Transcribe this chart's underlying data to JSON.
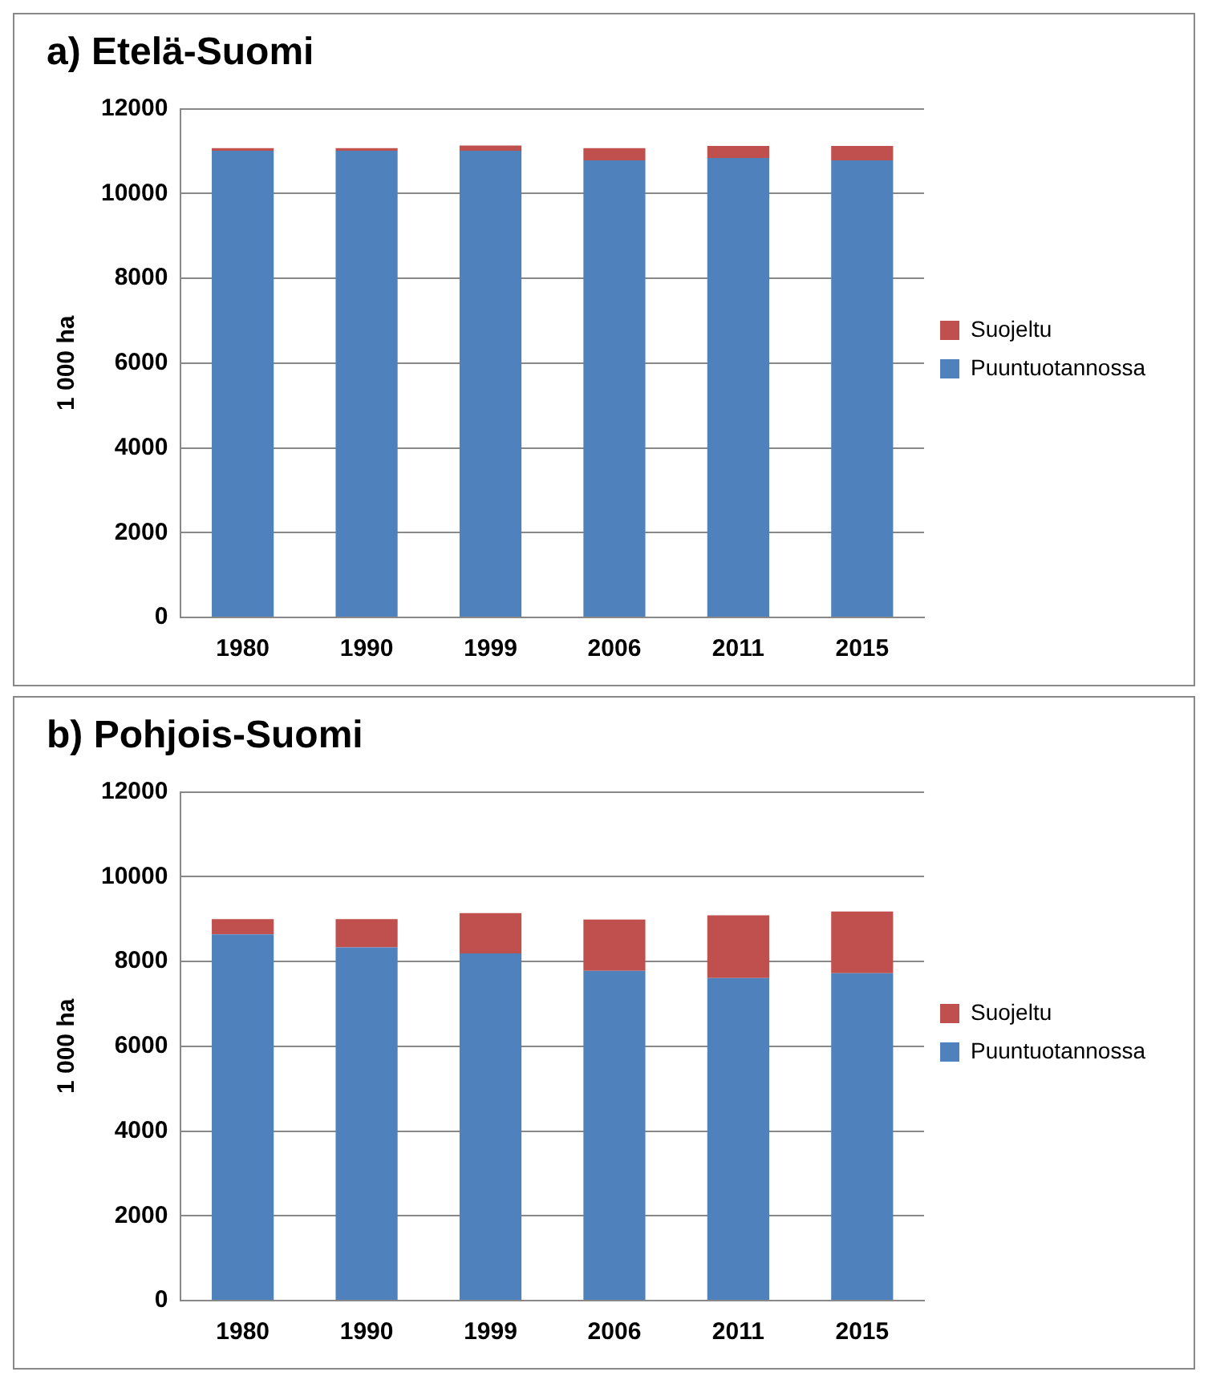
{
  "chart_data": [
    {
      "type": "bar",
      "title": "a) Etelä-Suomi",
      "ylabel": "1 000 ha",
      "categories": [
        "1980",
        "1990",
        "1999",
        "2006",
        "2011",
        "2015"
      ],
      "stacked": true,
      "ylim": [
        0,
        12000
      ],
      "yticks": [
        0,
        2000,
        4000,
        6000,
        8000,
        10000,
        12000
      ],
      "grid": "y",
      "legend": "right",
      "series": [
        {
          "name": "Puuntuotannossa",
          "color": "#4f81bd",
          "values": [
            11010,
            11010,
            11010,
            10780,
            10840,
            10780
          ]
        },
        {
          "name": "Suojeltu",
          "color": "#c0504d",
          "values": [
            60,
            60,
            120,
            290,
            280,
            340
          ]
        }
      ]
    },
    {
      "type": "bar",
      "title": "b) Pohjois-Suomi",
      "ylabel": "1 000 ha",
      "categories": [
        "1980",
        "1990",
        "1999",
        "2006",
        "2011",
        "2015"
      ],
      "stacked": true,
      "ylim": [
        0,
        12000
      ],
      "yticks": [
        0,
        2000,
        4000,
        6000,
        8000,
        10000,
        12000
      ],
      "grid": "y",
      "legend": "right",
      "series": [
        {
          "name": "Puuntuotannossa",
          "color": "#4f81bd",
          "values": [
            8640,
            8330,
            8190,
            7780,
            7610,
            7720
          ]
        },
        {
          "name": "Suojeltu",
          "color": "#c0504d",
          "values": [
            360,
            670,
            950,
            1210,
            1480,
            1460
          ]
        }
      ]
    }
  ]
}
